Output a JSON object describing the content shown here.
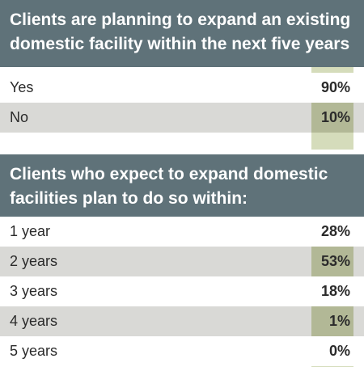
{
  "chart_data": [
    {
      "type": "table",
      "title": "Clients are planning to expand an existing domestic facility within the next five years",
      "categories": [
        "Yes",
        "No"
      ],
      "values": [
        "90%",
        "10%"
      ]
    },
    {
      "type": "table",
      "title": "Clients who expect to expand domestic facilities plan to do so within:",
      "categories": [
        "1 year",
        "2 years",
        "3 years",
        "4 years",
        "5 years"
      ],
      "values": [
        "28%",
        "53%",
        "18%",
        "1%",
        "0%"
      ]
    }
  ],
  "colors": {
    "header_bg": "#5f7279",
    "row_shaded": "#d9d9d6",
    "value_column": "#d5dcbb",
    "value_shaded": "#b2b896"
  }
}
